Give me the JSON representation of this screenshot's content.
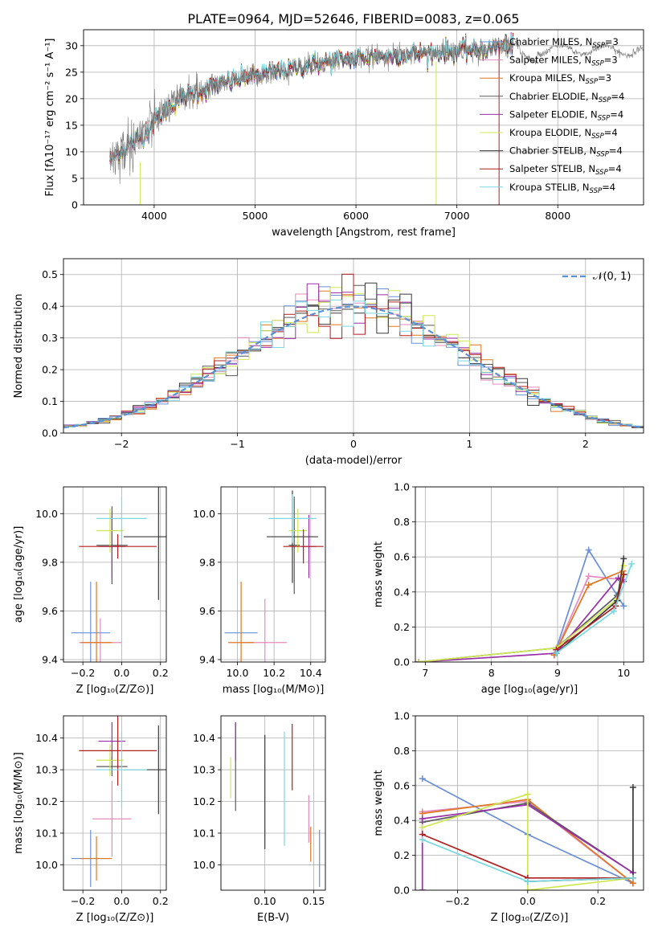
{
  "figure_title": "PLATE=0964, MJD=52646, FIBERID=0083, z=0.065",
  "colors": {
    "chab_miles": "#6a8fd6",
    "salp_miles": "#e58bbf",
    "krou_miles": "#e0771f",
    "chab_elodie": "#5a5a5a",
    "salp_elodie": "#9a2fa8",
    "krou_elodie": "#cde84f",
    "chab_stelib": "#3a3a3a",
    "salp_stelib": "#b01f1f",
    "krou_stelib": "#7ad8e0",
    "normal": "#5b8fd6",
    "grid": "#b0b0b0"
  },
  "legend": [
    {
      "key": "chab_miles",
      "label": "Chabrier MILES, N",
      "sub": "SSP",
      "suffix": "=3"
    },
    {
      "key": "salp_miles",
      "label": "Salpeter MILES, N",
      "sub": "SSP",
      "suffix": "=3"
    },
    {
      "key": "krou_miles",
      "label": "Kroupa MILES, N",
      "sub": "SSP",
      "suffix": "=3"
    },
    {
      "key": "chab_elodie",
      "label": "Chabrier ELODIE, N",
      "sub": "SSP",
      "suffix": "=4"
    },
    {
      "key": "salp_elodie",
      "label": "Salpeter ELODIE, N",
      "sub": "SSP",
      "suffix": "=4"
    },
    {
      "key": "krou_elodie",
      "label": "Kroupa ELODIE, N",
      "sub": "SSP",
      "suffix": "=4"
    },
    {
      "key": "chab_stelib",
      "label": "Chabrier STELIB, N",
      "sub": "SSP",
      "suffix": "=4"
    },
    {
      "key": "salp_stelib",
      "label": "Salpeter STELIB, N",
      "sub": "SSP",
      "suffix": "=4"
    },
    {
      "key": "krou_stelib",
      "label": "Kroupa STELIB, N",
      "sub": "SSP",
      "suffix": "=4"
    }
  ],
  "chart_data": [
    {
      "id": "spectrum",
      "type": "line",
      "xlabel": "wavelength [Angstrom, rest frame]",
      "ylabel": "Flux [fλ10⁻¹⁷ erg cm⁻² s⁻¹ A⁻¹]",
      "xlim": [
        3300,
        8850
      ],
      "ylim": [
        0,
        33
      ],
      "xticks": [
        4000,
        5000,
        6000,
        7000,
        8000
      ],
      "yticks": [
        0,
        5,
        10,
        15,
        20,
        25,
        30
      ],
      "continuum": {
        "x": [
          3560,
          3700,
          3850,
          3950,
          4000,
          4150,
          4300,
          4600,
          4900,
          5200,
          5500,
          5800,
          6100,
          6400,
          6700,
          7000,
          7200,
          7400,
          7550
        ],
        "y": [
          8.5,
          10.5,
          12.5,
          14.5,
          16.0,
          18.5,
          20.5,
          22.5,
          24.0,
          25.0,
          26.2,
          27.2,
          27.8,
          28.2,
          28.6,
          28.9,
          29.2,
          29.6,
          30.2
        ]
      },
      "data_x_range": [
        3560,
        8850
      ],
      "model_x_range": [
        3560,
        7560
      ]
    },
    {
      "id": "residual_hist",
      "type": "bar",
      "xlabel": "(data-model)/error",
      "ylabel": "Normed distribution",
      "xlim": [
        -2.5,
        2.5
      ],
      "ylim": [
        0,
        0.55
      ],
      "xticks": [
        -2,
        -1,
        0,
        1,
        2
      ],
      "yticks": [
        0.0,
        0.1,
        0.2,
        0.3,
        0.4,
        0.5
      ],
      "normal_label": "𝒩(0, 1)",
      "bin_width": 0.1
    },
    {
      "id": "age_vs_Z",
      "type": "scatter",
      "xlabel": "Z [log₁₀(Z/Z⊙)]",
      "ylabel": "age  [log₁₀(age/yr)]",
      "xlim": [
        -0.3,
        0.23
      ],
      "ylim": [
        9.39,
        10.11
      ],
      "xticks": [
        -0.2,
        0.0,
        0.2
      ],
      "yticks": [
        9.4,
        9.6,
        9.8,
        10.0
      ],
      "points": [
        {
          "key": "chab_miles",
          "x": -0.16,
          "y": 9.51,
          "xerr": 0.1,
          "yerr": 0.21
        },
        {
          "key": "salp_miles",
          "x": -0.11,
          "y": 9.47,
          "xerr": 0.11,
          "yerr": 0.1
        },
        {
          "key": "krou_miles",
          "x": -0.13,
          "y": 9.47,
          "xerr": 0.08,
          "yerr": 0.25
        },
        {
          "key": "chab_elodie",
          "x": -0.05,
          "y": 9.87,
          "xerr": 0.08,
          "yerr": 0.16
        },
        {
          "key": "salp_elodie",
          "x": -0.05,
          "y": 9.865,
          "xerr": 0.07,
          "yerr": 0.13
        },
        {
          "key": "krou_elodie",
          "x": -0.06,
          "y": 9.93,
          "xerr": 0.07,
          "yerr": 0.09
        },
        {
          "key": "chab_stelib",
          "x": 0.19,
          "y": 9.905,
          "xerr": 0.18,
          "yerr": 0.26
        },
        {
          "key": "salp_stelib",
          "x": -0.02,
          "y": 9.865,
          "xerr": 0.2,
          "yerr": 0.05
        },
        {
          "key": "krou_stelib",
          "x": 0.0,
          "y": 9.98,
          "xerr": 0.13,
          "yerr": 0.09
        }
      ]
    },
    {
      "id": "age_vs_mass",
      "type": "scatter",
      "xlabel": "mass [log₁₀(M/M⊙)]",
      "ylabel": "",
      "xlim": [
        9.91,
        10.48
      ],
      "ylim": [
        9.39,
        10.11
      ],
      "xticks": [
        10.0,
        10.2,
        10.4
      ],
      "yticks": [
        9.4,
        9.6,
        9.8,
        10.0
      ],
      "points": [
        {
          "key": "chab_miles",
          "x": 10.02,
          "y": 9.51,
          "xerr": 0.09,
          "yerr": 0.0
        },
        {
          "key": "salp_miles",
          "x": 10.15,
          "y": 9.47,
          "xerr": 0.12,
          "yerr": 0.18
        },
        {
          "key": "krou_miles",
          "x": 10.02,
          "y": 9.47,
          "xerr": 0.07,
          "yerr": 0.25
        },
        {
          "key": "chab_elodie",
          "x": 10.31,
          "y": 9.87,
          "xerr": 0.03,
          "yerr": 0.2
        },
        {
          "key": "salp_elodie",
          "x": 10.39,
          "y": 9.865,
          "xerr": 0.04,
          "yerr": 0.13
        },
        {
          "key": "krou_elodie",
          "x": 10.33,
          "y": 9.93,
          "xerr": 0.05,
          "yerr": 0.09
        },
        {
          "key": "chab_stelib",
          "x": 10.3,
          "y": 9.905,
          "xerr": 0.14,
          "yerr": 0.19
        },
        {
          "key": "salp_stelib",
          "x": 10.36,
          "y": 9.865,
          "xerr": 0.11,
          "yerr": 0.07
        },
        {
          "key": "krou_stelib",
          "x": 10.3,
          "y": 9.98,
          "xerr": 0.13,
          "yerr": 0.1
        }
      ]
    },
    {
      "id": "massweight_vs_age",
      "type": "line",
      "xlabel": "age  [log₁₀(age/yr)]",
      "ylabel": "mass weight",
      "xlim": [
        6.85,
        10.3
      ],
      "ylim": [
        0,
        1.0
      ],
      "xticks": [
        7,
        8,
        9,
        10
      ],
      "yticks": [
        0.0,
        0.2,
        0.4,
        0.6,
        0.8,
        1.0
      ],
      "series": [
        {
          "key": "chab_miles",
          "x": [
            8.95,
            9.47,
            10.0
          ],
          "y": [
            0.04,
            0.64,
            0.32
          ]
        },
        {
          "key": "salp_miles",
          "x": [
            8.95,
            9.47,
            9.99
          ],
          "y": [
            0.04,
            0.49,
            0.47
          ]
        },
        {
          "key": "krou_miles",
          "x": [
            8.95,
            9.47,
            9.99
          ],
          "y": [
            0.04,
            0.44,
            0.52
          ]
        },
        {
          "key": "chab_elodie",
          "x": [
            6.9,
            8.98,
            9.9,
            10.0
          ],
          "y": [
            0.0,
            0.08,
            0.38,
            0.5
          ]
        },
        {
          "key": "salp_elodie",
          "x": [
            6.9,
            8.98,
            9.92,
            10.0
          ],
          "y": [
            0.0,
            0.05,
            0.48,
            0.46
          ]
        },
        {
          "key": "krou_elodie",
          "x": [
            6.9,
            8.98,
            9.9,
            10.0
          ],
          "y": [
            0.0,
            0.08,
            0.36,
            0.55
          ]
        },
        {
          "key": "chab_stelib",
          "x": [
            8.98,
            9.9,
            10.0
          ],
          "y": [
            0.05,
            0.35,
            0.59
          ]
        },
        {
          "key": "salp_stelib",
          "x": [
            8.98,
            9.88,
            10.0
          ],
          "y": [
            0.07,
            0.32,
            0.5
          ]
        },
        {
          "key": "krou_stelib",
          "x": [
            8.98,
            9.85,
            10.12
          ],
          "y": [
            0.05,
            0.29,
            0.56
          ]
        }
      ]
    },
    {
      "id": "mass_vs_Z",
      "type": "scatter",
      "xlabel": "Z [log₁₀(Z/Z⊙)]",
      "ylabel": "mass [log₁₀(M/M⊙)]",
      "xlim": [
        -0.3,
        0.23
      ],
      "ylim": [
        9.92,
        10.47
      ],
      "xticks": [
        -0.2,
        0.0,
        0.2
      ],
      "yticks": [
        10.0,
        10.1,
        10.2,
        10.3,
        10.4
      ],
      "points": [
        {
          "key": "chab_miles",
          "x": -0.16,
          "y": 10.02,
          "xerr": 0.1,
          "yerr": 0.09
        },
        {
          "key": "salp_miles",
          "x": -0.05,
          "y": 10.145,
          "xerr": 0.1,
          "yerr": 0.12
        },
        {
          "key": "krou_miles",
          "x": -0.13,
          "y": 10.02,
          "xerr": 0.08,
          "yerr": 0.07
        },
        {
          "key": "chab_elodie",
          "x": -0.05,
          "y": 10.31,
          "xerr": 0.08,
          "yerr": 0.03
        },
        {
          "key": "salp_elodie",
          "x": -0.05,
          "y": 10.39,
          "xerr": 0.07,
          "yerr": 0.06
        },
        {
          "key": "krou_elodie",
          "x": -0.06,
          "y": 10.33,
          "xerr": 0.07,
          "yerr": 0.05
        },
        {
          "key": "chab_stelib",
          "x": 0.19,
          "y": 10.3,
          "xerr": 0.18,
          "yerr": 0.14
        },
        {
          "key": "salp_stelib",
          "x": -0.02,
          "y": 10.36,
          "xerr": 0.2,
          "yerr": 0.11
        },
        {
          "key": "krou_stelib",
          "x": 0.0,
          "y": 10.3,
          "xerr": 0.13,
          "yerr": 0.12
        }
      ]
    },
    {
      "id": "mass_vs_ebv",
      "type": "scatter",
      "xlabel": "E(B-V)",
      "ylabel": "",
      "xlim": [
        0.055,
        0.162
      ],
      "ylim": [
        9.92,
        10.47
      ],
      "xticks": [
        0.1,
        0.15
      ],
      "yticks": [
        10.0,
        10.1,
        10.2,
        10.3,
        10.4
      ],
      "points": [
        {
          "key": "chab_miles",
          "x": 0.156,
          "y": 10.02,
          "xerr": 0.0,
          "yerr": 0.09
        },
        {
          "key": "salp_miles",
          "x": 0.145,
          "y": 10.145,
          "xerr": 0.0,
          "yerr": 0.075
        },
        {
          "key": "krou_miles",
          "x": 0.147,
          "y": 10.065,
          "xerr": 0.0,
          "yerr": 0.055
        },
        {
          "key": "chab_elodie",
          "x": 0.07,
          "y": 10.31,
          "xerr": 0.0,
          "yerr": 0.14
        },
        {
          "key": "salp_elodie",
          "x": 0.07,
          "y": 10.39,
          "xerr": 0.0,
          "yerr": 0.06
        },
        {
          "key": "krou_elodie",
          "x": 0.065,
          "y": 10.275,
          "xerr": 0.0,
          "yerr": 0.065
        },
        {
          "key": "chab_stelib",
          "x": 0.1,
          "y": 10.23,
          "xerr": 0.0,
          "yerr": 0.18
        },
        {
          "key": "salp_stelib",
          "x": 0.128,
          "y": 10.34,
          "xerr": 0.0,
          "yerr": 0.105
        },
        {
          "key": "krou_stelib",
          "x": 0.12,
          "y": 10.24,
          "xerr": 0.0,
          "yerr": 0.18
        }
      ]
    },
    {
      "id": "massweight_vs_Z",
      "type": "line",
      "xlabel": "Z [log₁₀(Z/Z⊙)]",
      "ylabel": "mass weight",
      "xlim": [
        -0.32,
        0.33
      ],
      "ylim": [
        0,
        1.0
      ],
      "xticks": [
        -0.2,
        0.0,
        0.2
      ],
      "yticks": [
        0.0,
        0.2,
        0.4,
        0.6,
        0.8,
        1.0
      ],
      "series": [
        {
          "key": "chab_miles",
          "x": [
            -0.3,
            0.0,
            0.3
          ],
          "y": [
            0.64,
            0.32,
            0.04
          ]
        },
        {
          "key": "salp_miles",
          "x": [
            -0.3,
            0.0,
            0.3
          ],
          "y": [
            0.45,
            0.51,
            0.04
          ]
        },
        {
          "key": "krou_miles",
          "x": [
            -0.3,
            0.0,
            0.3
          ],
          "y": [
            0.44,
            0.52,
            0.04
          ]
        },
        {
          "key": "chab_elodie",
          "x": [
            -0.3,
            0.0,
            0.3
          ],
          "y": [
            0.39,
            0.5,
            0.1
          ]
        },
        {
          "key": "salp_elodie",
          "x": [
            -0.3,
            -0.3,
            0.0,
            0.3
          ],
          "y": [
            0.0,
            0.41,
            0.49,
            0.1
          ]
        },
        {
          "key": "krou_elodie",
          "x": [
            -0.3,
            0.0,
            0.0,
            0.3
          ],
          "y": [
            0.36,
            0.55,
            0.0,
            0.07
          ]
        },
        {
          "key": "chab_stelib",
          "x": [
            0.0,
            0.3,
            0.3
          ],
          "y": [
            0.05,
            0.07,
            0.59
          ]
        },
        {
          "key": "salp_stelib",
          "x": [
            -0.3,
            0.0,
            0.3
          ],
          "y": [
            0.32,
            0.07,
            0.07
          ]
        },
        {
          "key": "krou_stelib",
          "x": [
            -0.3,
            0.0,
            0.3
          ],
          "y": [
            0.29,
            0.05,
            0.07
          ]
        }
      ]
    }
  ]
}
